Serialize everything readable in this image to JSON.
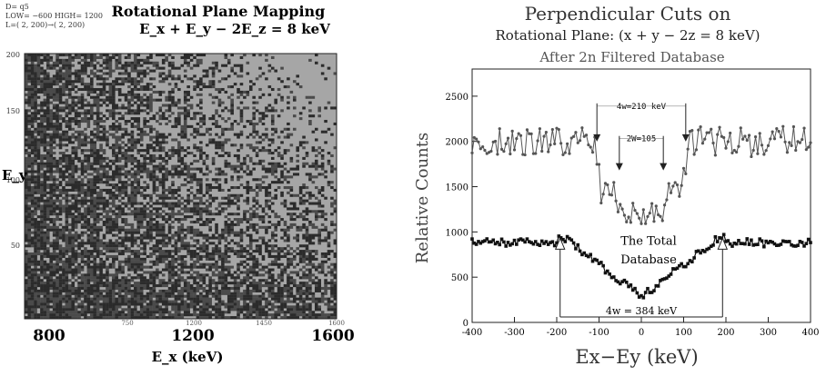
{
  "chart_data": [
    {
      "type": "heatmap",
      "title": "Rotational Plane Mapping",
      "subtitle": "E_x + E_y − 2E_z = 8 keV",
      "header_lines": [
        "D= q5",
        "LOW=  −600 HIGH=  1200",
        "L=(   2,  200)→(   2,  200)"
      ],
      "xlabel": "E_x (keV)",
      "ylabel": "E_y",
      "x_major_ticks": [
        "800",
        "1200",
        "1600"
      ],
      "x_minor_ticks": [
        "750",
        "1200",
        "1450",
        "1600"
      ],
      "y_ticks": [
        "50",
        "100",
        "150",
        "200"
      ],
      "grid": {
        "cols": 100,
        "rows": 100
      },
      "colors": {
        "background": "#a6a6a6",
        "dark": "#2b2b2b",
        "mid": "#4a4a4a"
      }
    },
    {
      "type": "line",
      "title": "Perpendicular Cuts on",
      "subtitle": "Rotational Plane: (x + y − 2z = 8 keV)",
      "xlabel": "Ex−Ey (keV)",
      "ylabel": "Relative Counts",
      "xlim": [
        -400,
        400
      ],
      "ylim": [
        0,
        2800
      ],
      "x_ticks": [
        -400,
        -300,
        -200,
        -100,
        0,
        100,
        200,
        300,
        400
      ],
      "y_ticks": [
        0,
        500,
        1000,
        1500,
        2000,
        2500
      ],
      "series": [
        {
          "name": "After 2n Filtered Database",
          "color": "#555555",
          "marker": "small-dot"
        },
        {
          "name": "The Total Database",
          "color": "#111111",
          "marker": "square"
        }
      ],
      "annotations": [
        {
          "text": "After 2n Filtered Database"
        },
        {
          "text": "4w=210 keV",
          "arrows_at_x": [
            -105,
            105
          ],
          "y": 2280
        },
        {
          "text": "2W=105",
          "arrows_at_x": [
            -52,
            52
          ],
          "y": 1920
        },
        {
          "text": "The Total",
          "y": 860
        },
        {
          "text": "Database",
          "y": 650
        },
        {
          "text": "4w = 384 keV",
          "arrows_at_x": [
            -192,
            192
          ],
          "y": 60
        }
      ]
    }
  ]
}
